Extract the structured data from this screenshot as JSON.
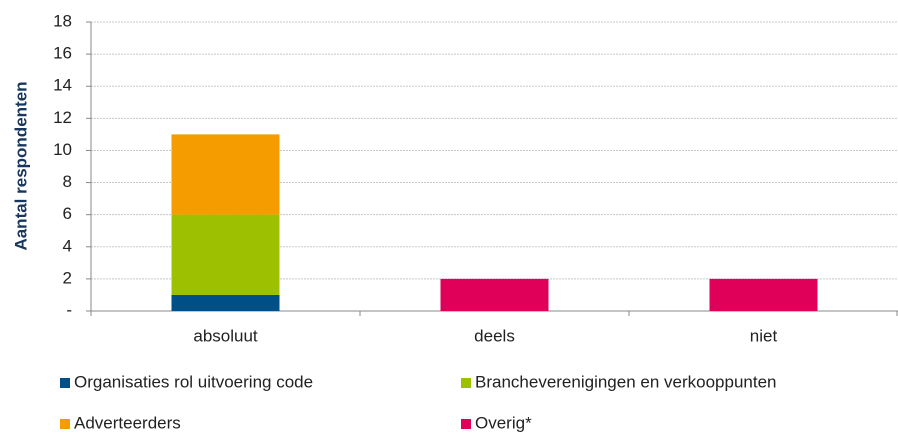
{
  "chart_data": {
    "type": "stacked_bar",
    "ylabel": "Aantal respondenten",
    "categories": [
      "absoluut",
      "deels",
      "niet"
    ],
    "series": [
      {
        "name": "Organisaties rol uitvoering code",
        "color": "#004f86",
        "values": [
          1,
          0,
          0
        ]
      },
      {
        "name": "Brancheverenigingen en verkooppunten",
        "color": "#9dc000",
        "values": [
          5,
          0,
          0
        ]
      },
      {
        "name": "Adverteerders",
        "color": "#f59c00",
        "values": [
          5,
          0,
          0
        ]
      },
      {
        "name": "Overig*",
        "color": "#e0005a",
        "values": [
          0,
          2,
          2
        ]
      }
    ],
    "ylim": [
      0,
      18
    ],
    "yticks": [
      {
        "value": 0,
        "label": "-"
      },
      2,
      4,
      6,
      8,
      10,
      12,
      14,
      16,
      18
    ],
    "grid": true
  }
}
